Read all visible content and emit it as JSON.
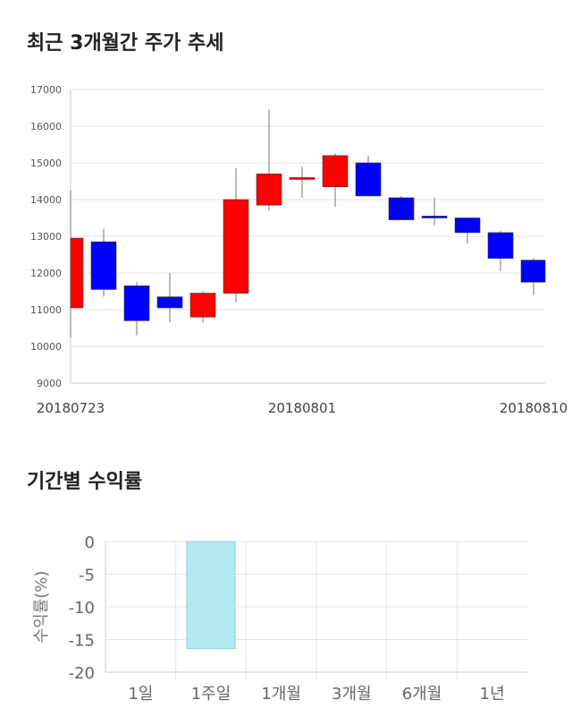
{
  "titles": {
    "price_trend": "최근 3개월간 주가 추세",
    "returns": "기간별 수익률"
  },
  "chart_data": [
    {
      "type": "candlestick",
      "title": "최근 3개월간 주가 추세",
      "ylim": [
        9000,
        17000
      ],
      "yticks": [
        9000,
        10000,
        11000,
        12000,
        13000,
        14000,
        15000,
        16000,
        17000
      ],
      "xtick_labels": [
        "20180723",
        "20180801",
        "20180810"
      ],
      "up_color": "#ff0000",
      "down_color": "#0000ff",
      "candles": [
        {
          "open": 11050,
          "close": 12950,
          "high": 14250,
          "low": 10250
        },
        {
          "open": 12850,
          "close": 11550,
          "high": 13200,
          "low": 11350
        },
        {
          "open": 11650,
          "close": 10700,
          "high": 11750,
          "low": 10300
        },
        {
          "open": 11350,
          "close": 11050,
          "high": 12000,
          "low": 10650
        },
        {
          "open": 10800,
          "close": 11450,
          "high": 11500,
          "low": 10650
        },
        {
          "open": 11450,
          "close": 14000,
          "high": 14850,
          "low": 11200
        },
        {
          "open": 13850,
          "close": 14700,
          "high": 16450,
          "low": 13700
        },
        {
          "open": 14550,
          "close": 14600,
          "high": 14900,
          "low": 14050
        },
        {
          "open": 14350,
          "close": 15200,
          "high": 15250,
          "low": 13800
        },
        {
          "open": 15000,
          "close": 14100,
          "high": 15200,
          "low": 14100
        },
        {
          "open": 14050,
          "close": 13450,
          "high": 14100,
          "low": 13450
        },
        {
          "open": 13550,
          "close": 13500,
          "high": 14050,
          "low": 13300
        },
        {
          "open": 13500,
          "close": 13100,
          "high": 13500,
          "low": 12800
        },
        {
          "open": 13100,
          "close": 12400,
          "high": 13150,
          "low": 12050
        },
        {
          "open": 12350,
          "close": 11750,
          "high": 12400,
          "low": 11400
        }
      ]
    },
    {
      "type": "bar",
      "title": "기간별 수익률",
      "ylabel": "수익률(%)",
      "ylim": [
        -20,
        0
      ],
      "yticks": [
        0,
        -5,
        -10,
        -15,
        -20
      ],
      "categories": [
        "1일",
        "1주일",
        "1개월",
        "3개월",
        "6개월",
        "1년"
      ],
      "values": [
        null,
        -16.4,
        null,
        null,
        null,
        null
      ],
      "bar_color": "#b3eaf2"
    }
  ]
}
